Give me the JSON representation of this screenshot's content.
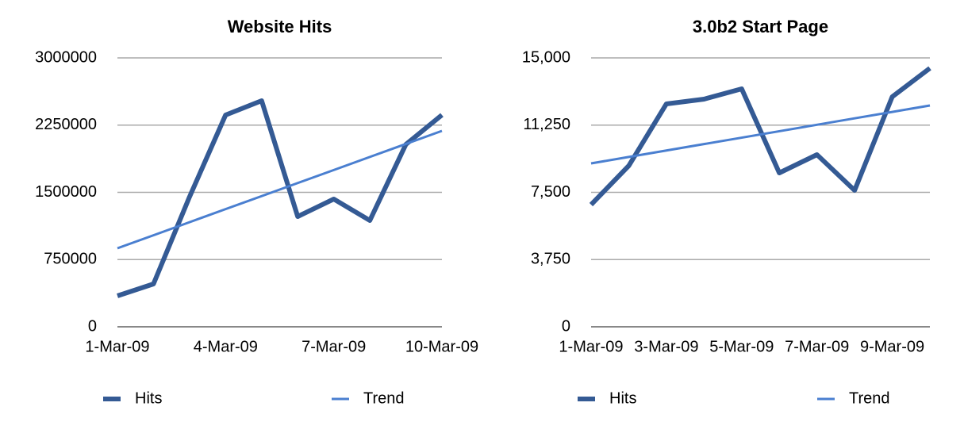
{
  "chart_data": [
    {
      "type": "line",
      "title": "Website Hits",
      "categories": [
        "1-Mar-09",
        null,
        null,
        "4-Mar-09",
        null,
        null,
        "7-Mar-09",
        null,
        null,
        "10-Mar-09"
      ],
      "series": [
        {
          "name": "Hits",
          "color": "#345a94",
          "values": [
            345000,
            478000,
            1450000,
            2363000,
            2522000,
            1230000,
            1425000,
            1186000,
            2035000,
            2363000
          ]
        },
        {
          "name": "Trend",
          "color": "#4a7fd0",
          "values": [
            876000,
            1021000,
            1167000,
            1313000,
            1458000,
            1604000,
            1749000,
            1895000,
            2040000,
            2186000
          ]
        }
      ],
      "ylim": [
        0,
        3000000
      ],
      "yticks": [
        0,
        750000,
        1500000,
        2250000,
        3000000
      ],
      "grid": true,
      "legend": "bottom"
    },
    {
      "type": "line",
      "title": "3.0b2 Start Page",
      "categories": [
        "1-Mar-09",
        null,
        "3-Mar-09",
        null,
        "5-Mar-09",
        null,
        "7-Mar-09",
        null,
        "9-Mar-09",
        null
      ],
      "series": [
        {
          "name": "Hits",
          "color": "#345a94",
          "values": [
            6814,
            8982,
            12434,
            12699,
            13274,
            8584,
            9602,
            7611,
            12832,
            14425
          ]
        },
        {
          "name": "Trend",
          "color": "#4a7fd0",
          "values": [
            9115,
            9474,
            9833,
            10192,
            10551,
            10910,
            11269,
            11628,
            11987,
            12345
          ]
        }
      ],
      "ylim": [
        0,
        15000
      ],
      "yticks": [
        0,
        {
          "value": 3750,
          "label": "3,750"
        },
        {
          "value": 7500,
          "label": "7,500"
        },
        {
          "value": 11250,
          "label": "11,250"
        },
        {
          "value": 15000,
          "label": "15,000"
        }
      ],
      "grid": true,
      "legend": "bottom"
    }
  ]
}
